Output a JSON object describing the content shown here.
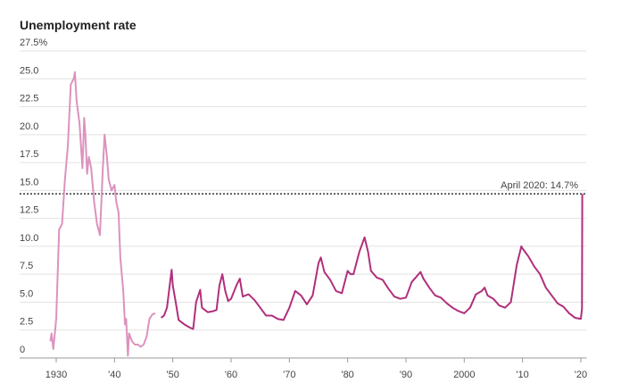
{
  "chart_data": {
    "type": "line",
    "title": "Unemployment rate",
    "xlim": [
      1929,
      2021
    ],
    "ylim": [
      0,
      27.5
    ],
    "xticks": [
      {
        "value": 1930,
        "label": "1930"
      },
      {
        "value": 1940,
        "label": "'40"
      },
      {
        "value": 1950,
        "label": "'50"
      },
      {
        "value": 1960,
        "label": "'60"
      },
      {
        "value": 1970,
        "label": "'70"
      },
      {
        "value": 1980,
        "label": "'80"
      },
      {
        "value": 1990,
        "label": "'90"
      },
      {
        "value": 2000,
        "label": "2000"
      },
      {
        "value": 2010,
        "label": "'10"
      },
      {
        "value": 2020,
        "label": "'20"
      }
    ],
    "yticks": [
      0,
      {
        "value": 2.5,
        "label": "2.5"
      },
      {
        "value": 5,
        "label": "5.0"
      },
      {
        "value": 7.5,
        "label": "7.5"
      },
      {
        "value": 10,
        "label": "10.0"
      },
      {
        "value": 12.5,
        "label": "12.5"
      },
      {
        "value": 15,
        "label": "15.0"
      },
      {
        "value": 17.5,
        "label": "17.5"
      },
      {
        "value": 20,
        "label": "20.0"
      },
      {
        "value": 22.5,
        "label": "22.5"
      },
      {
        "value": 25,
        "label": "25.0"
      },
      {
        "value": 27.5,
        "label": "27.5%"
      }
    ],
    "grid": true,
    "annotation": {
      "text": "April 2020: 14.7%",
      "value": 14.7
    },
    "series": [
      {
        "color": "#dc93bd",
        "x": [
          1929.0,
          1929.2,
          1929.5,
          1930.0,
          1930.5,
          1931.0,
          1931.5,
          1932.0,
          1932.5,
          1933.0,
          1933.2,
          1933.5,
          1934.0,
          1934.5,
          1934.8,
          1935.0,
          1935.3,
          1935.6,
          1936.0,
          1936.5,
          1937.0,
          1937.5,
          1938.0,
          1938.3,
          1938.7,
          1939.0,
          1939.5,
          1940.0,
          1940.3,
          1940.7,
          1941.0,
          1941.5,
          1941.8,
          1942.0,
          1942.3,
          1942.5,
          1943.0,
          1943.5,
          1944.0,
          1944.5,
          1945.0,
          1945.5,
          1946.0,
          1946.5,
          1947.0
        ],
        "values": [
          1.5,
          2.2,
          0.8,
          3.5,
          11.5,
          12.0,
          16.0,
          19.0,
          24.5,
          25.0,
          25.6,
          23.0,
          21.0,
          17.0,
          21.5,
          20.0,
          16.5,
          18.0,
          17.0,
          14.0,
          12.0,
          11.0,
          17.0,
          20.0,
          18.0,
          16.0,
          15.0,
          15.5,
          14.0,
          13.0,
          9.0,
          6.0,
          3.0,
          3.5,
          0.2,
          2.2,
          1.5,
          1.2,
          1.2,
          1.0,
          1.2,
          1.9,
          3.5,
          3.9,
          4.0
        ]
      },
      {
        "color": "#b12f7c",
        "x": [
          1948.0,
          1948.5,
          1949.0,
          1949.8,
          1950.0,
          1950.5,
          1951.0,
          1952.0,
          1953.0,
          1953.5,
          1954.0,
          1954.7,
          1955.0,
          1956.0,
          1957.0,
          1957.5,
          1958.0,
          1958.5,
          1959.0,
          1959.5,
          1960.0,
          1961.0,
          1961.5,
          1962.0,
          1963.0,
          1964.0,
          1965.0,
          1966.0,
          1967.0,
          1968.0,
          1969.0,
          1970.0,
          1971.0,
          1972.0,
          1973.0,
          1974.0,
          1975.0,
          1975.4,
          1976.0,
          1977.0,
          1978.0,
          1979.0,
          1980.0,
          1980.5,
          1981.0,
          1982.0,
          1982.9,
          1983.5,
          1984.0,
          1985.0,
          1986.0,
          1987.0,
          1988.0,
          1989.0,
          1990.0,
          1991.0,
          1992.5,
          1993.0,
          1994.0,
          1995.0,
          1996.0,
          1997.0,
          1998.0,
          1999.0,
          2000.0,
          2001.0,
          2002.0,
          2003.0,
          2003.5,
          2004.0,
          2005.0,
          2006.0,
          2007.0,
          2008.0,
          2009.0,
          2009.8,
          2010.0,
          2011.0,
          2012.0,
          2013.0,
          2014.0,
          2015.0,
          2016.0,
          2017.0,
          2018.0,
          2019.0,
          2020.0,
          2020.2,
          2020.25
        ],
        "values": [
          3.6,
          3.8,
          4.5,
          7.9,
          6.5,
          5.0,
          3.4,
          3.0,
          2.7,
          2.6,
          5.0,
          6.1,
          4.5,
          4.1,
          4.2,
          4.3,
          6.5,
          7.5,
          6.0,
          5.1,
          5.3,
          6.6,
          7.1,
          5.5,
          5.7,
          5.2,
          4.5,
          3.8,
          3.8,
          3.5,
          3.4,
          4.5,
          6.0,
          5.6,
          4.8,
          5.6,
          8.5,
          9.0,
          7.7,
          7.0,
          6.0,
          5.8,
          7.8,
          7.5,
          7.5,
          9.5,
          10.8,
          9.5,
          7.8,
          7.2,
          7.0,
          6.2,
          5.5,
          5.3,
          5.4,
          6.8,
          7.7,
          7.1,
          6.3,
          5.6,
          5.4,
          4.9,
          4.5,
          4.2,
          4.0,
          4.5,
          5.7,
          6.0,
          6.3,
          5.6,
          5.3,
          4.7,
          4.5,
          5.0,
          8.3,
          10.0,
          9.8,
          9.1,
          8.2,
          7.5,
          6.3,
          5.6,
          4.9,
          4.6,
          4.0,
          3.6,
          3.5,
          4.4,
          14.7
        ]
      }
    ]
  }
}
